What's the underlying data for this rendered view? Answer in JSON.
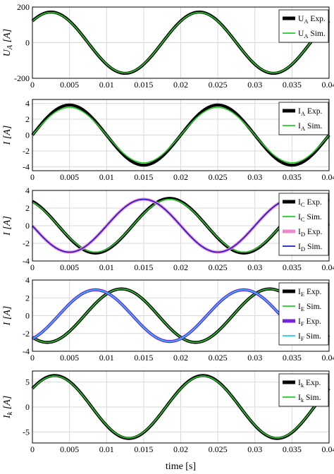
{
  "chart_data": [
    {
      "type": "line",
      "ylabel": "U_A [A]",
      "ylabel_main": "U",
      "ylabel_sub": "A",
      "ylabel_unit": " [A]",
      "xlim": [
        0,
        0.04
      ],
      "ylim": [
        -200,
        200
      ],
      "xticks": [
        "0",
        "0.005",
        "0.01",
        "0.015",
        "0.02",
        "0.025",
        "0.03",
        "0.035",
        "0.04"
      ],
      "yticks": [
        "200",
        "0",
        "-200"
      ],
      "grid": true,
      "legend_position": "right",
      "series": [
        {
          "name": "U_A Exp.",
          "label_main": "U",
          "label_sub": "A",
          "label_rest": " Exp.",
          "color": "#000000",
          "amplitude": 172,
          "phase_ms": 2.5,
          "offset": 0
        },
        {
          "name": "U_A Sim.",
          "label_main": "U",
          "label_sub": "A",
          "label_rest": " Sim.",
          "color": "#22cc22",
          "amplitude": 170,
          "phase_ms": 2.5,
          "offset": 0
        }
      ]
    },
    {
      "type": "line",
      "ylabel": "I [A]",
      "ylabel_main": "I",
      "ylabel_sub": "",
      "ylabel_unit": " [A]",
      "xlim": [
        0,
        0.04
      ],
      "ylim": [
        -4.5,
        4.5
      ],
      "xticks": [
        "0",
        "0.005",
        "0.01",
        "0.015",
        "0.02",
        "0.025",
        "0.03",
        "0.035",
        "0.04"
      ],
      "yticks": [
        "4",
        "2",
        "0",
        "-2",
        "-4"
      ],
      "grid": true,
      "legend_position": "right",
      "series": [
        {
          "name": "I_A Exp.",
          "label_main": "I",
          "label_sub": "A",
          "label_rest": " Exp.",
          "color": "#000000",
          "amplitude": 3.8,
          "phase_ms": 5.0,
          "offset": 0
        },
        {
          "name": "I_A Sim.",
          "label_main": "I",
          "label_sub": "A",
          "label_rest": " Sim.",
          "color": "#22cc22",
          "amplitude": 3.5,
          "phase_ms": 5.0,
          "offset": 0
        }
      ]
    },
    {
      "type": "line",
      "ylabel": "I [A]",
      "ylabel_main": "I",
      "ylabel_sub": "",
      "ylabel_unit": " [A]",
      "xlim": [
        0,
        0.04
      ],
      "ylim": [
        -4,
        4
      ],
      "xticks": [
        "0",
        "0.005",
        "0.01",
        "0.015",
        "0.02",
        "0.025",
        "0.03",
        "0.035",
        "0.04"
      ],
      "yticks": [
        "4",
        "2",
        "0",
        "-2",
        "-4"
      ],
      "grid": true,
      "legend_position": "right",
      "series": [
        {
          "name": "I_C Exp.",
          "label_main": "I",
          "label_sub": "C",
          "label_rest": " Exp.",
          "color": "#000000",
          "amplitude": 3.1,
          "phase_ms": 18.5,
          "offset": 0
        },
        {
          "name": "I_C Sim.",
          "label_main": "I",
          "label_sub": "C",
          "label_rest": " Sim.",
          "color": "#22cc22",
          "amplitude": 3.0,
          "phase_ms": 18.5,
          "offset": 0
        },
        {
          "name": "I_D Exp.",
          "label_main": "I",
          "label_sub": "D",
          "label_rest": " Exp.",
          "color": "#ee88cc",
          "amplitude": 3.0,
          "phase_ms": 15.0,
          "offset": 0
        },
        {
          "name": "I_D Sim.",
          "label_main": "I",
          "label_sub": "D",
          "label_rest": " Sim.",
          "color": "#1a1acc",
          "amplitude": 3.0,
          "phase_ms": 15.0,
          "offset": 0
        }
      ]
    },
    {
      "type": "line",
      "ylabel": "I [A]",
      "ylabel_main": "I",
      "ylabel_sub": "",
      "ylabel_unit": " [A]",
      "xlim": [
        0,
        0.04
      ],
      "ylim": [
        -4,
        4
      ],
      "xticks": [
        "0",
        "0.005",
        "0.01",
        "0.015",
        "0.02",
        "0.025",
        "0.03",
        "0.035",
        "0.04"
      ],
      "yticks": [
        "4",
        "2",
        "0",
        "-2",
        "-4"
      ],
      "grid": true,
      "legend_position": "right",
      "series": [
        {
          "name": "I_E Exp.",
          "label_main": "I",
          "label_sub": "E",
          "label_rest": " Exp.",
          "color": "#000000",
          "amplitude": 3.0,
          "phase_ms": 12.0,
          "offset": 0
        },
        {
          "name": "I_E Sim.",
          "label_main": "I",
          "label_sub": "E",
          "label_rest": " Sim.",
          "color": "#22cc22",
          "amplitude": 3.0,
          "phase_ms": 12.0,
          "offset": 0
        },
        {
          "name": "I_F Exp.",
          "label_main": "I",
          "label_sub": "F",
          "label_rest": " Exp.",
          "color": "#7722dd",
          "amplitude": 2.9,
          "phase_ms": 8.5,
          "offset": 0
        },
        {
          "name": "I_F Sim.",
          "label_main": "I",
          "label_sub": "F",
          "label_rest": " Sim.",
          "color": "#22ccee",
          "amplitude": 2.9,
          "phase_ms": 8.5,
          "offset": 0
        }
      ]
    },
    {
      "type": "line",
      "ylabel": "I_k [A]",
      "ylabel_main": "I",
      "ylabel_sub": "k",
      "ylabel_unit": " [A]",
      "xlabel": "time [s]",
      "xlim": [
        0,
        0.04
      ],
      "ylim": [
        -7.2,
        7.2
      ],
      "xticks": [
        "0",
        "0.005",
        "0.01",
        "0.015",
        "0.02",
        "0.025",
        "0.03",
        "0.035",
        "0.04"
      ],
      "yticks": [
        "5",
        "0",
        "-5"
      ],
      "grid": true,
      "legend_position": "right",
      "series": [
        {
          "name": "I_k Exp.",
          "label_main": "I",
          "label_sub": "k",
          "label_rest": " Exp.",
          "color": "#000000",
          "amplitude": 6.3,
          "phase_ms": 3.0,
          "offset": 0
        },
        {
          "name": "I_k Sim.",
          "label_main": "I",
          "label_sub": "k",
          "label_rest": " Sim.",
          "color": "#22cc22",
          "amplitude": 6.2,
          "phase_ms": 3.0,
          "offset": 0
        }
      ]
    }
  ],
  "x_axis_label": "time [s]"
}
